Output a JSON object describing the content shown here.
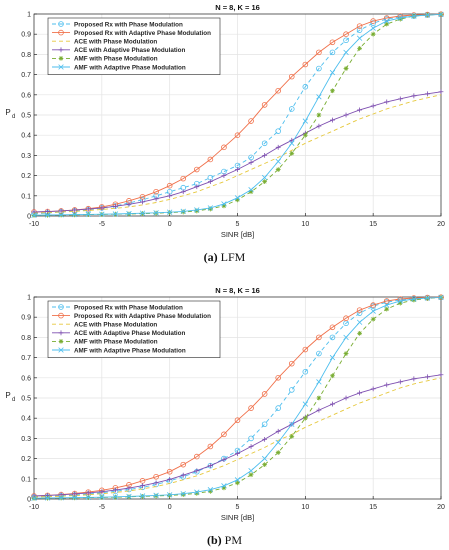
{
  "chart_data": [
    {
      "type": "line",
      "title": "N = 8, K = 16",
      "xlabel": "SINR [dB]",
      "ylabel": "P",
      "ylabel_subscript": "d",
      "xlim": [
        -10,
        20
      ],
      "ylim": [
        0,
        1
      ],
      "xticks": [
        -10,
        -5,
        0,
        5,
        10,
        15,
        20
      ],
      "yticks": [
        0,
        0.1,
        0.2,
        0.3,
        0.4,
        0.5,
        0.6,
        0.7,
        0.8,
        0.9,
        1
      ],
      "grid": true,
      "legend_position": "top-left",
      "x": [
        -10,
        -9,
        -8,
        -7,
        -6,
        -5,
        -4,
        -3,
        -2,
        -1,
        0,
        1,
        2,
        3,
        4,
        5,
        6,
        7,
        8,
        9,
        10,
        11,
        12,
        13,
        14,
        15,
        16,
        17,
        18,
        19,
        20
      ],
      "series": [
        {
          "name": "Proposed Rx with Phase Modulation",
          "color": "#4dbeee",
          "dash": "4,3",
          "marker": "circle",
          "values": [
            0.01,
            0.015,
            0.02,
            0.025,
            0.03,
            0.04,
            0.05,
            0.065,
            0.08,
            0.1,
            0.12,
            0.14,
            0.16,
            0.19,
            0.22,
            0.25,
            0.29,
            0.36,
            0.42,
            0.53,
            0.64,
            0.73,
            0.81,
            0.87,
            0.92,
            0.955,
            0.975,
            0.985,
            0.99,
            0.995,
            0.998
          ]
        },
        {
          "name": "Proposed Rx with Adaptive Phase Modulation",
          "color": "#f0704a",
          "dash": "",
          "marker": "circle",
          "values": [
            0.02,
            0.022,
            0.025,
            0.03,
            0.036,
            0.045,
            0.058,
            0.075,
            0.095,
            0.12,
            0.15,
            0.185,
            0.23,
            0.28,
            0.34,
            0.4,
            0.47,
            0.55,
            0.62,
            0.69,
            0.75,
            0.81,
            0.86,
            0.9,
            0.94,
            0.965,
            0.98,
            0.99,
            0.995,
            0.997,
            0.999
          ]
        },
        {
          "name": "ACE with Phase Modulation",
          "color": "#e6c83c",
          "dash": "4,3",
          "marker": "none",
          "values": [
            0.015,
            0.017,
            0.02,
            0.023,
            0.027,
            0.032,
            0.038,
            0.045,
            0.055,
            0.067,
            0.082,
            0.1,
            0.12,
            0.145,
            0.17,
            0.2,
            0.23,
            0.26,
            0.29,
            0.325,
            0.36,
            0.39,
            0.42,
            0.45,
            0.48,
            0.505,
            0.53,
            0.55,
            0.57,
            0.585,
            0.6
          ]
        },
        {
          "name": "ACE with Adaptive Phase Modulation",
          "color": "#7e4fb0",
          "dash": "",
          "marker": "plus",
          "values": [
            0.02,
            0.022,
            0.025,
            0.029,
            0.034,
            0.04,
            0.048,
            0.058,
            0.07,
            0.085,
            0.1,
            0.12,
            0.145,
            0.17,
            0.2,
            0.23,
            0.265,
            0.3,
            0.34,
            0.375,
            0.41,
            0.445,
            0.475,
            0.5,
            0.525,
            0.545,
            0.565,
            0.58,
            0.595,
            0.605,
            0.615
          ]
        },
        {
          "name": "AMF with Phase Modulation",
          "color": "#77ac30",
          "dash": "4,3",
          "marker": "star",
          "values": [
            0.003,
            0.004,
            0.005,
            0.006,
            0.007,
            0.008,
            0.009,
            0.01,
            0.012,
            0.014,
            0.017,
            0.02,
            0.025,
            0.035,
            0.05,
            0.08,
            0.12,
            0.17,
            0.23,
            0.31,
            0.4,
            0.5,
            0.62,
            0.73,
            0.83,
            0.9,
            0.95,
            0.975,
            0.99,
            0.995,
            0.998
          ]
        },
        {
          "name": "AMF with Adaptive Phase Modulation",
          "color": "#4dbeee",
          "dash": "",
          "marker": "cross",
          "values": [
            0.004,
            0.005,
            0.006,
            0.007,
            0.008,
            0.009,
            0.01,
            0.012,
            0.014,
            0.016,
            0.019,
            0.023,
            0.03,
            0.04,
            0.06,
            0.09,
            0.13,
            0.19,
            0.27,
            0.36,
            0.47,
            0.59,
            0.71,
            0.81,
            0.88,
            0.93,
            0.965,
            0.98,
            0.99,
            0.995,
            0.998
          ]
        }
      ]
    },
    {
      "type": "line",
      "title": "N = 8, K = 16",
      "xlabel": "SINR [dB]",
      "ylabel": "P",
      "ylabel_subscript": "d",
      "xlim": [
        -10,
        20
      ],
      "ylim": [
        0,
        1
      ],
      "xticks": [
        -10,
        -5,
        0,
        5,
        10,
        15,
        20
      ],
      "yticks": [
        0,
        0.1,
        0.2,
        0.3,
        0.4,
        0.5,
        0.6,
        0.7,
        0.8,
        0.9,
        1
      ],
      "grid": true,
      "legend_position": "top-left",
      "x": [
        -10,
        -9,
        -8,
        -7,
        -6,
        -5,
        -4,
        -3,
        -2,
        -1,
        0,
        1,
        2,
        3,
        4,
        5,
        6,
        7,
        8,
        9,
        10,
        11,
        12,
        13,
        14,
        15,
        16,
        17,
        18,
        19,
        20
      ],
      "series": [
        {
          "name": "Proposed Rx with Phase Modulation",
          "color": "#4dbeee",
          "dash": "4,3",
          "marker": "circle",
          "values": [
            0.01,
            0.013,
            0.016,
            0.02,
            0.025,
            0.031,
            0.038,
            0.047,
            0.058,
            0.072,
            0.09,
            0.11,
            0.135,
            0.165,
            0.2,
            0.24,
            0.3,
            0.37,
            0.45,
            0.54,
            0.63,
            0.72,
            0.8,
            0.87,
            0.92,
            0.955,
            0.975,
            0.985,
            0.992,
            0.996,
            0.998
          ]
        },
        {
          "name": "Proposed Rx with Adaptive Phase Modulation",
          "color": "#f0704a",
          "dash": "",
          "marker": "circle",
          "values": [
            0.015,
            0.018,
            0.022,
            0.027,
            0.034,
            0.043,
            0.055,
            0.07,
            0.09,
            0.11,
            0.135,
            0.17,
            0.21,
            0.26,
            0.32,
            0.39,
            0.45,
            0.52,
            0.6,
            0.67,
            0.74,
            0.8,
            0.85,
            0.895,
            0.935,
            0.96,
            0.98,
            0.99,
            0.995,
            0.997,
            0.999
          ]
        },
        {
          "name": "ACE with Phase Modulation",
          "color": "#e6c83c",
          "dash": "4,3",
          "marker": "none",
          "values": [
            0.01,
            0.012,
            0.014,
            0.017,
            0.021,
            0.026,
            0.032,
            0.04,
            0.05,
            0.062,
            0.077,
            0.095,
            0.115,
            0.14,
            0.165,
            0.195,
            0.225,
            0.255,
            0.29,
            0.32,
            0.355,
            0.385,
            0.415,
            0.445,
            0.475,
            0.5,
            0.525,
            0.55,
            0.57,
            0.585,
            0.6
          ]
        },
        {
          "name": "ACE with Adaptive Phase Modulation",
          "color": "#7e4fb0",
          "dash": "",
          "marker": "plus",
          "values": [
            0.015,
            0.018,
            0.021,
            0.025,
            0.03,
            0.036,
            0.044,
            0.054,
            0.066,
            0.08,
            0.097,
            0.118,
            0.14,
            0.165,
            0.195,
            0.225,
            0.26,
            0.295,
            0.335,
            0.37,
            0.405,
            0.44,
            0.47,
            0.5,
            0.525,
            0.545,
            0.565,
            0.58,
            0.595,
            0.605,
            0.615
          ]
        },
        {
          "name": "AMF with Phase Modulation",
          "color": "#77ac30",
          "dash": "4,3",
          "marker": "star",
          "values": [
            0.003,
            0.004,
            0.005,
            0.006,
            0.007,
            0.008,
            0.009,
            0.011,
            0.013,
            0.015,
            0.018,
            0.022,
            0.028,
            0.038,
            0.055,
            0.08,
            0.12,
            0.17,
            0.23,
            0.31,
            0.4,
            0.5,
            0.61,
            0.72,
            0.82,
            0.89,
            0.94,
            0.97,
            0.985,
            0.993,
            0.998
          ]
        },
        {
          "name": "AMF with Adaptive Phase Modulation",
          "color": "#4dbeee",
          "dash": "",
          "marker": "cross",
          "values": [
            0.004,
            0.005,
            0.006,
            0.007,
            0.008,
            0.009,
            0.011,
            0.013,
            0.015,
            0.018,
            0.021,
            0.026,
            0.034,
            0.046,
            0.065,
            0.095,
            0.14,
            0.2,
            0.28,
            0.37,
            0.47,
            0.58,
            0.7,
            0.8,
            0.875,
            0.93,
            0.96,
            0.98,
            0.99,
            0.995,
            0.998
          ]
        }
      ]
    }
  ],
  "captions": [
    {
      "label": "(a)",
      "text": "LFM"
    },
    {
      "label": "(b)",
      "text": "PM"
    }
  ]
}
